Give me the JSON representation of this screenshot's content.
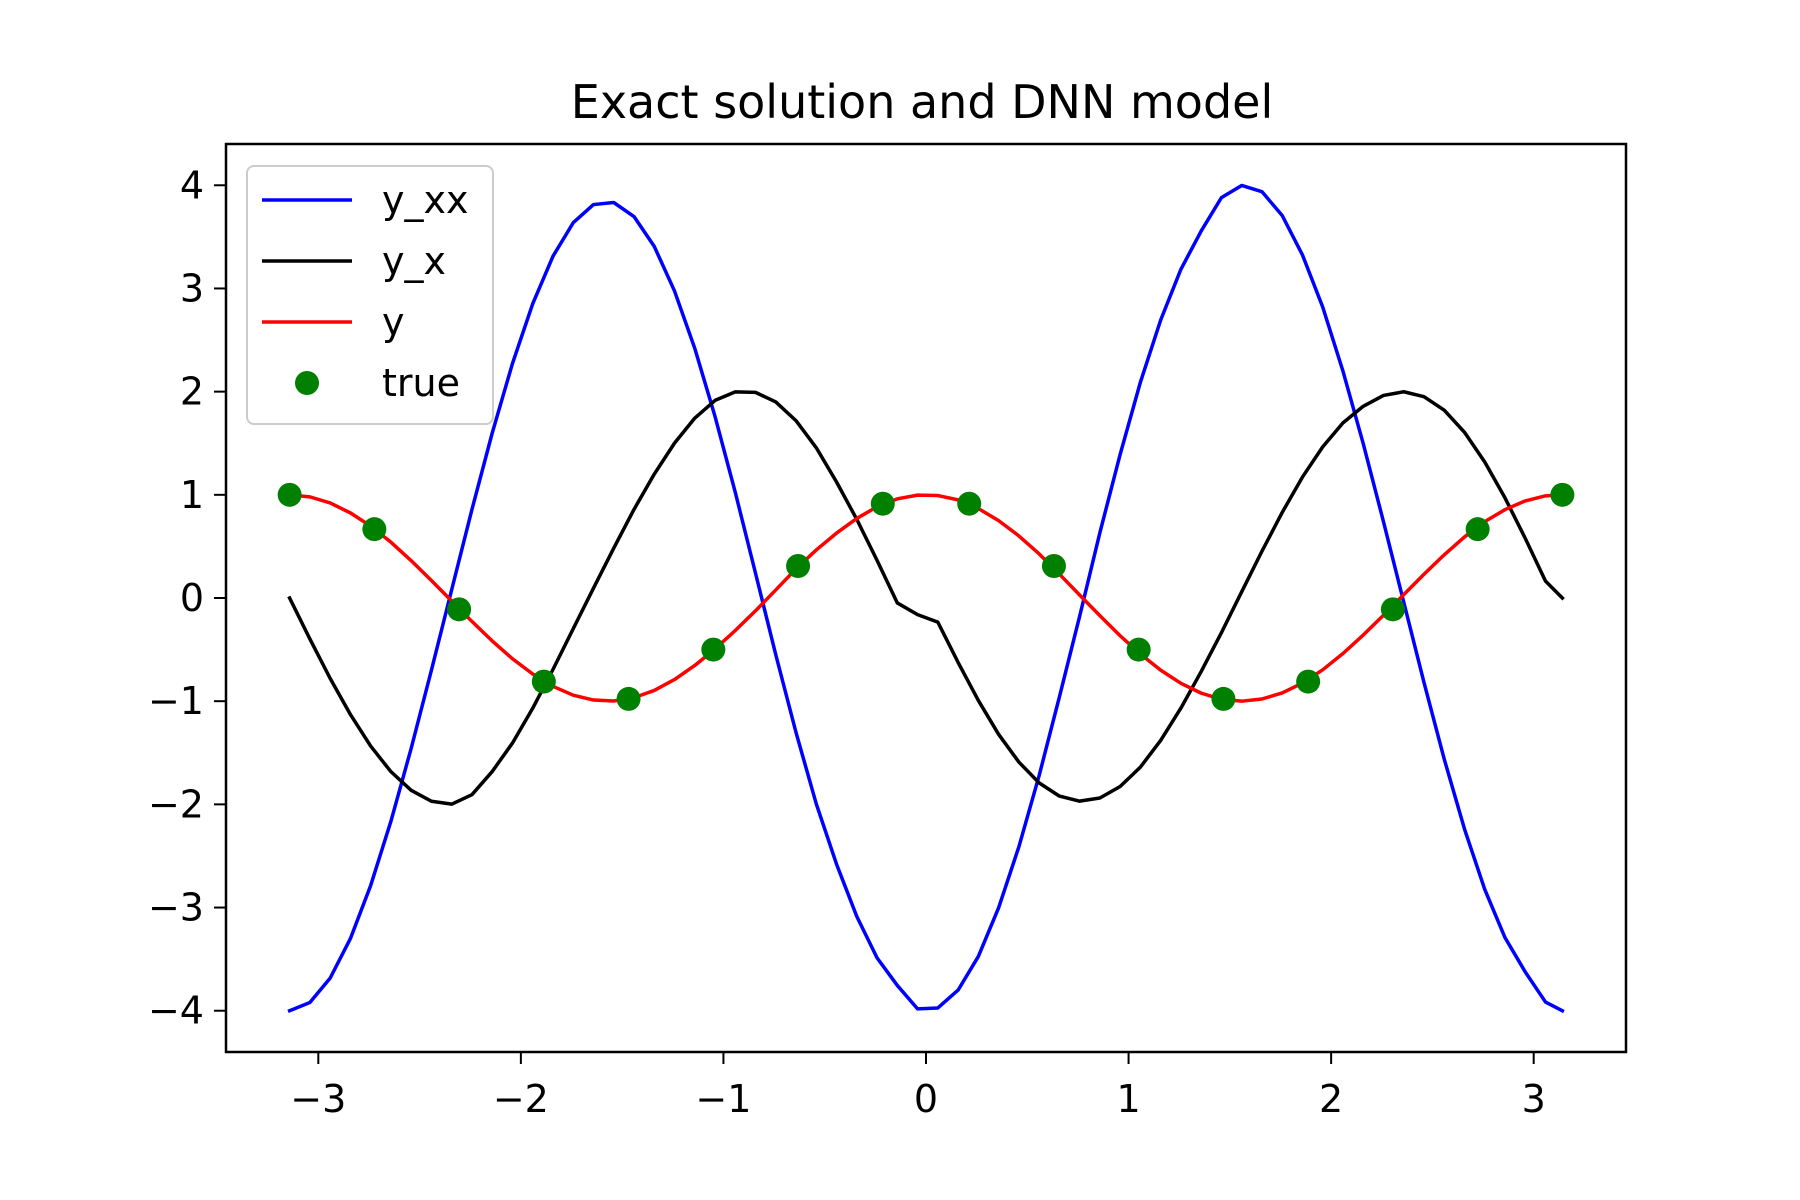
{
  "chart_data": {
    "type": "line",
    "title": "Exact solution and DNN model",
    "xlabel": "",
    "ylabel": "",
    "xlim": [
      -3.4557,
      3.4557
    ],
    "ylim": [
      -4.4,
      4.4
    ],
    "xticks": [
      -3,
      -2,
      -1,
      0,
      1,
      2,
      3
    ],
    "yticks": [
      -4,
      -3,
      -2,
      -1,
      0,
      1,
      2,
      3,
      4
    ],
    "xtick_labels": [
      "−3",
      "−2",
      "−1",
      "0",
      "1",
      "2",
      "3"
    ],
    "ytick_labels": [
      "−4",
      "−3",
      "−2",
      "−1",
      "0",
      "1",
      "2",
      "3",
      "4"
    ],
    "grid": false,
    "legend": {
      "position": "top-left"
    },
    "series": [
      {
        "name": "y_xx",
        "style": "line",
        "color": "#0000ff",
        "formula": "-4cos(2x)",
        "x": [
          -3.1416,
          -3.0416,
          -2.9416,
          -2.8416,
          -2.7416,
          -2.6416,
          -2.5416,
          -2.4416,
          -2.3416,
          -2.2416,
          -2.1416,
          -2.0416,
          -1.9416,
          -1.8416,
          -1.7416,
          -1.6416,
          -1.5416,
          -1.4416,
          -1.3416,
          -1.2416,
          -1.1416,
          -1.0416,
          -0.9416,
          -0.8416,
          -0.7416,
          -0.6416,
          -0.5416,
          -0.4416,
          -0.3416,
          -0.2416,
          -0.1416,
          -0.0416,
          0.0584,
          0.1584,
          0.2584,
          0.3584,
          0.4584,
          0.5584,
          0.6584,
          0.7584,
          0.8584,
          0.9584,
          1.0584,
          1.1584,
          1.2584,
          1.3584,
          1.4584,
          1.5584,
          1.6584,
          1.7584,
          1.8584,
          1.9584,
          2.0584,
          2.1584,
          2.2584,
          2.3584,
          2.4584,
          2.5584,
          2.6584,
          2.7584,
          2.8584,
          2.9584,
          3.0584,
          3.1416
        ],
        "y": [
          -4.0,
          -3.92,
          -3.684,
          -3.301,
          -2.787,
          -2.164,
          -1.458,
          -0.7,
          0.08,
          0.857,
          1.598,
          2.272,
          2.851,
          3.312,
          3.637,
          3.813,
          3.833,
          3.697,
          3.408,
          2.976,
          2.42,
          1.76,
          1.024,
          0.24,
          -0.55,
          -1.304,
          -1.996,
          -2.58,
          -3.087,
          -3.488,
          -3.755,
          -3.982,
          -3.973,
          -3.8,
          -3.474,
          -3.003,
          -2.412,
          -1.722,
          -0.96,
          -0.178,
          0.633,
          1.391,
          2.091,
          2.693,
          3.186,
          3.556,
          3.88,
          3.998,
          3.938,
          3.707,
          3.325,
          2.82,
          2.199,
          1.497,
          0.74,
          -0.04,
          -0.818,
          -1.562,
          -2.239,
          -2.824,
          -3.292,
          -3.624,
          -3.916,
          -4.0
        ]
      },
      {
        "name": "y_x",
        "style": "line",
        "color": "#000000",
        "formula": "-2sin(2x)",
        "x": [
          -3.1416,
          -3.0416,
          -2.9416,
          -2.8416,
          -2.7416,
          -2.6416,
          -2.5416,
          -2.4416,
          -2.3416,
          -2.2416,
          -2.1416,
          -2.0416,
          -1.9416,
          -1.8416,
          -1.7416,
          -1.6416,
          -1.5416,
          -1.4416,
          -1.3416,
          -1.2416,
          -1.1416,
          -1.0416,
          -0.9416,
          -0.8416,
          -0.7416,
          -0.6416,
          -0.5416,
          -0.4416,
          -0.3416,
          -0.2416,
          -0.1416,
          -0.0416,
          0.0584,
          0.1584,
          0.2584,
          0.3584,
          0.4584,
          0.5584,
          0.6584,
          0.7584,
          0.8584,
          0.9584,
          1.0584,
          1.1584,
          1.2584,
          1.3584,
          1.4584,
          1.5584,
          1.6584,
          1.7584,
          1.8584,
          1.9584,
          2.0584,
          2.1584,
          2.2584,
          2.3584,
          2.4584,
          2.5584,
          2.6584,
          2.7584,
          2.8584,
          2.9584,
          3.0584,
          3.1416
        ],
        "y": [
          0.0,
          -0.397,
          -0.779,
          -1.129,
          -1.435,
          -1.683,
          -1.864,
          -1.97,
          -1.998,
          -1.906,
          -1.682,
          -1.406,
          -1.069,
          -0.693,
          -0.298,
          0.095,
          0.483,
          0.858,
          1.2,
          1.501,
          1.743,
          1.915,
          1.998,
          1.993,
          1.9,
          1.718,
          1.456,
          1.124,
          0.762,
          0.365,
          -0.048,
          -0.161,
          -0.234,
          -0.624,
          -0.993,
          -1.321,
          -1.59,
          -1.792,
          -1.92,
          -1.969,
          -1.938,
          -1.827,
          -1.639,
          -1.381,
          -1.067,
          -0.713,
          -0.336,
          0.06,
          0.453,
          0.829,
          1.172,
          1.465,
          1.697,
          1.858,
          1.963,
          1.999,
          1.951,
          1.82,
          1.606,
          1.318,
          0.97,
          0.578,
          0.164,
          0.0
        ]
      },
      {
        "name": "y",
        "style": "line",
        "color": "#ff0000",
        "formula": "cos(2x)",
        "x": [
          -3.1416,
          -3.0416,
          -2.9416,
          -2.8416,
          -2.7416,
          -2.6416,
          -2.5416,
          -2.4416,
          -2.3416,
          -2.2416,
          -2.1416,
          -2.0416,
          -1.9416,
          -1.8416,
          -1.7416,
          -1.6416,
          -1.5416,
          -1.4416,
          -1.3416,
          -1.2416,
          -1.1416,
          -1.0416,
          -0.9416,
          -0.8416,
          -0.7416,
          -0.6416,
          -0.5416,
          -0.4416,
          -0.3416,
          -0.2416,
          -0.1416,
          -0.0416,
          0.0584,
          0.1584,
          0.2584,
          0.3584,
          0.4584,
          0.5584,
          0.6584,
          0.7584,
          0.8584,
          0.9584,
          1.0584,
          1.1584,
          1.2584,
          1.3584,
          1.4584,
          1.5584,
          1.6584,
          1.7584,
          1.8584,
          1.9584,
          2.0584,
          2.1584,
          2.2584,
          2.3584,
          2.4584,
          2.5584,
          2.6584,
          2.7584,
          2.8584,
          2.9584,
          3.0584,
          3.1416
        ],
        "y": [
          1.0,
          0.98,
          0.921,
          0.825,
          0.697,
          0.541,
          0.362,
          0.17,
          -0.029,
          -0.227,
          -0.416,
          -0.589,
          -0.737,
          -0.856,
          -0.942,
          -0.989,
          -0.998,
          -0.966,
          -0.896,
          -0.79,
          -0.654,
          -0.494,
          -0.315,
          -0.124,
          0.078,
          0.283,
          0.466,
          0.629,
          0.771,
          0.884,
          0.961,
          0.997,
          0.993,
          0.951,
          0.867,
          0.75,
          0.602,
          0.428,
          0.232,
          0.029,
          -0.171,
          -0.366,
          -0.543,
          -0.699,
          -0.827,
          -0.922,
          -0.982,
          -1.0,
          -0.979,
          -0.92,
          -0.824,
          -0.696,
          -0.538,
          -0.359,
          -0.167,
          0.033,
          0.23,
          0.419,
          0.592,
          0.74,
          0.857,
          0.941,
          0.99,
          1.0
        ]
      },
      {
        "name": "true",
        "style": "marker",
        "color": "#008000",
        "x": [
          -3.1416,
          -2.7233,
          -2.3049,
          -1.8866,
          -1.4683,
          -1.0499,
          -0.6316,
          -0.2133,
          0.2133,
          0.6316,
          1.0499,
          1.4683,
          1.8866,
          2.3049,
          2.7233,
          3.1416
        ],
        "y": [
          1.0,
          0.667,
          -0.11,
          -0.81,
          -0.978,
          -0.5,
          0.31,
          0.914,
          0.914,
          0.31,
          -0.5,
          -0.978,
          -0.81,
          -0.11,
          0.667,
          1.0
        ]
      }
    ]
  }
}
